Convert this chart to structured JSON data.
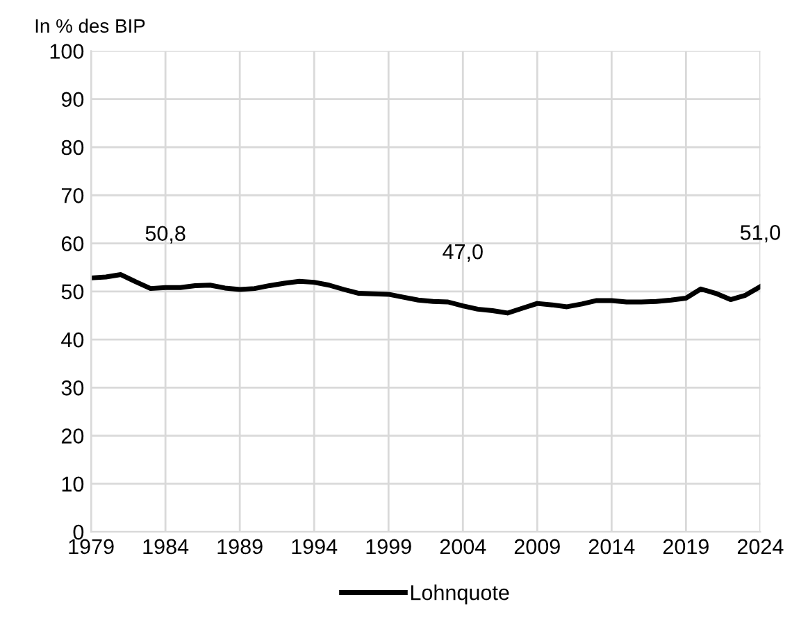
{
  "chart_data": {
    "type": "line",
    "ylabel": "In % des BIP",
    "x": [
      1979,
      1980,
      1981,
      1982,
      1983,
      1984,
      1985,
      1986,
      1987,
      1988,
      1989,
      1990,
      1991,
      1992,
      1993,
      1994,
      1995,
      1996,
      1997,
      1998,
      1999,
      2000,
      2001,
      2002,
      2003,
      2004,
      2005,
      2006,
      2007,
      2008,
      2009,
      2010,
      2011,
      2012,
      2013,
      2014,
      2015,
      2016,
      2017,
      2018,
      2019,
      2020,
      2021,
      2022,
      2023,
      2024
    ],
    "series": [
      {
        "name": "Lohnquote",
        "color": "#000000",
        "values": [
          52.8,
          53.0,
          53.5,
          52.0,
          50.6,
          50.8,
          50.8,
          51.2,
          51.3,
          50.7,
          50.4,
          50.6,
          51.2,
          51.7,
          52.1,
          51.9,
          51.3,
          50.4,
          49.6,
          49.5,
          49.4,
          48.8,
          48.2,
          47.9,
          47.8,
          47.0,
          46.3,
          46.0,
          45.5,
          46.5,
          47.5,
          47.2,
          46.8,
          47.4,
          48.1,
          48.1,
          47.8,
          47.8,
          47.9,
          48.2,
          48.6,
          50.5,
          49.6,
          48.3,
          49.2,
          51.0
        ]
      }
    ],
    "annotations": [
      {
        "text": "50,8",
        "x": 1984,
        "y": 50.8
      },
      {
        "text": "47,0",
        "x": 2004,
        "y": 47.0
      },
      {
        "text": "51,0",
        "x": 2024,
        "y": 51.0
      }
    ],
    "xlim": [
      1979,
      2024
    ],
    "xticks": [
      1979,
      1984,
      1989,
      1994,
      1999,
      2004,
      2009,
      2014,
      2019,
      2024
    ],
    "ylim": [
      0,
      100
    ],
    "yticks": [
      0,
      10,
      20,
      30,
      40,
      50,
      60,
      70,
      80,
      90,
      100
    ],
    "grid": true,
    "legend": "bottom",
    "marker": "none",
    "line_style": "solid"
  }
}
